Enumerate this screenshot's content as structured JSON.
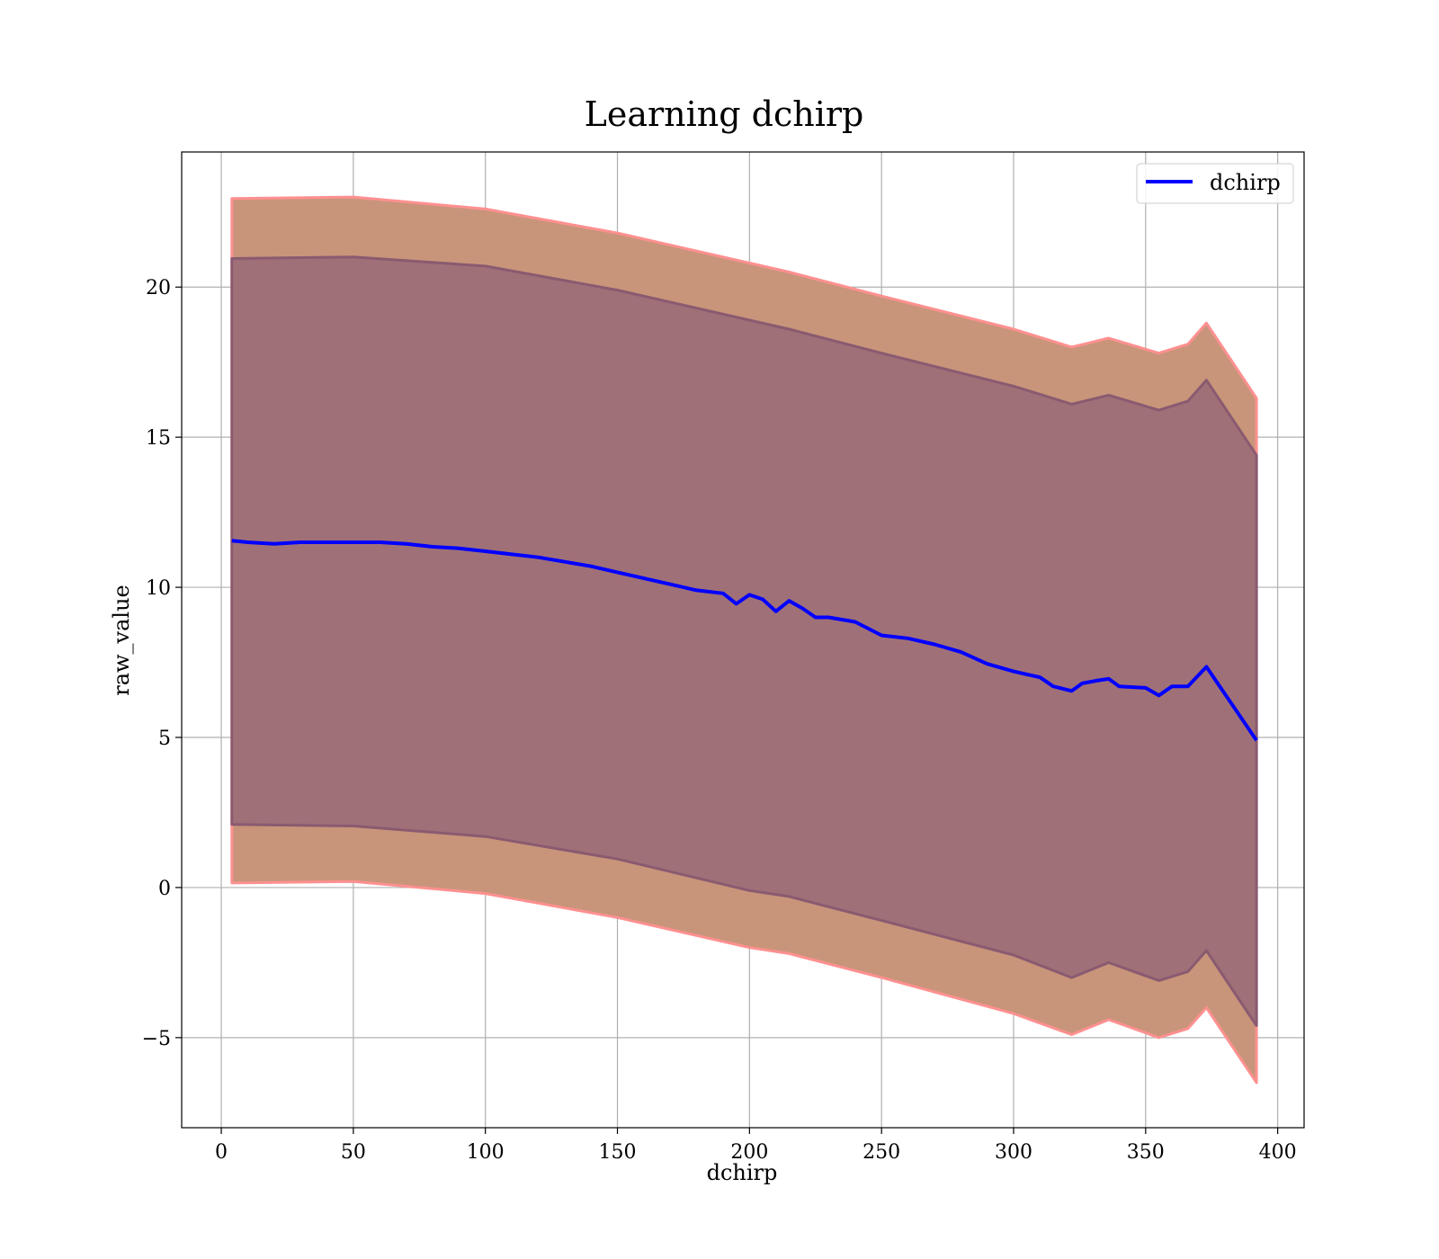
{
  "chart_data": {
    "type": "line",
    "title": "Learning dchirp",
    "xlabel": "dchirp",
    "ylabel": "raw_value",
    "xlim": [
      -15,
      410
    ],
    "ylim": [
      -8,
      24.5
    ],
    "grid": true,
    "legend": {
      "position": "top-right",
      "entries": [
        "dchirp"
      ]
    },
    "x_ticks": [
      0,
      50,
      100,
      150,
      200,
      250,
      300,
      350,
      400
    ],
    "y_ticks": [
      -5,
      0,
      5,
      10,
      15,
      20
    ],
    "y_tick_labels": [
      "−5",
      "0",
      "5",
      "10",
      "15",
      "20"
    ],
    "colors": {
      "line": "#0000ff",
      "outer_band": "#c8957a",
      "outer_band_edge": "#ff9090",
      "inner_band": "#a07078",
      "inner_band_edge": "#8a5a70"
    },
    "series": [
      {
        "name": "dchirp",
        "x": [
          4,
          10,
          20,
          30,
          40,
          50,
          60,
          70,
          80,
          90,
          100,
          110,
          120,
          130,
          140,
          150,
          160,
          170,
          180,
          190,
          195,
          200,
          205,
          210,
          215,
          220,
          225,
          230,
          240,
          250,
          260,
          270,
          280,
          290,
          300,
          310,
          315,
          322,
          326,
          332,
          336,
          340,
          350,
          355,
          360,
          366,
          373,
          392
        ],
        "y": [
          11.55,
          11.5,
          11.45,
          11.5,
          11.5,
          11.5,
          11.5,
          11.45,
          11.35,
          11.3,
          11.2,
          11.1,
          11.0,
          10.85,
          10.7,
          10.5,
          10.3,
          10.1,
          9.9,
          9.8,
          9.45,
          9.75,
          9.6,
          9.2,
          9.55,
          9.3,
          9.0,
          9.0,
          8.85,
          8.4,
          8.3,
          8.1,
          7.85,
          7.45,
          7.2,
          7.0,
          6.7,
          6.55,
          6.8,
          6.9,
          6.95,
          6.7,
          6.65,
          6.4,
          6.7,
          6.7,
          7.35,
          4.9
        ]
      }
    ],
    "bands": [
      {
        "x": [
          4,
          50,
          100,
          150,
          200,
          215,
          250,
          300,
          322,
          336,
          355,
          366,
          373,
          392
        ],
        "upper": [
          22.95,
          23.0,
          22.6,
          21.8,
          20.8,
          20.5,
          19.7,
          18.6,
          18.0,
          18.3,
          17.8,
          18.1,
          18.8,
          16.3
        ],
        "lower": [
          0.15,
          0.2,
          -0.2,
          -1.0,
          -2.0,
          -2.2,
          -3.0,
          -4.2,
          -4.9,
          -4.4,
          -5.0,
          -4.7,
          -4.0,
          -6.5
        ]
      },
      {
        "x": [
          4,
          50,
          100,
          150,
          200,
          215,
          250,
          300,
          322,
          336,
          355,
          366,
          373,
          392
        ],
        "upper": [
          20.95,
          21.0,
          20.7,
          19.9,
          18.9,
          18.6,
          17.8,
          16.7,
          16.1,
          16.4,
          15.9,
          16.2,
          16.9,
          14.4
        ],
        "lower": [
          2.1,
          2.05,
          1.7,
          0.95,
          -0.1,
          -0.3,
          -1.1,
          -2.25,
          -3.0,
          -2.5,
          -3.1,
          -2.8,
          -2.1,
          -4.6
        ]
      }
    ]
  }
}
